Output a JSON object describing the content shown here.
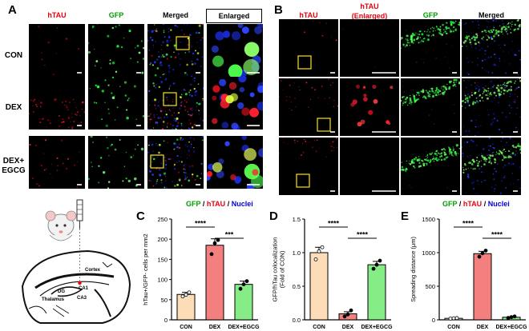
{
  "figure": {
    "panel_labels": {
      "a": "A",
      "b": "B",
      "c": "C",
      "d": "D",
      "e": "E"
    },
    "panel_a": {
      "columns": [
        "hTAU",
        "GFP",
        "Merged",
        "Enlarged"
      ],
      "rows": [
        "CON",
        "DEX",
        "DEX+\nEGCG"
      ]
    },
    "panel_b": {
      "columns": [
        "hTAU",
        "hTAU\n(Enlarged)",
        "GFP",
        "Merged"
      ]
    },
    "stain_legend": {
      "gfp": "GFP",
      "sep1": " / ",
      "htau": "hTAU",
      "sep2": " / ",
      "nuclei": "Nuclei"
    },
    "diagram_labels": {
      "cortex": "Cortex",
      "ca1": "CA1",
      "dg": "DG",
      "ca3": "CA3",
      "thalamus": "Thalamus"
    },
    "colors": {
      "con": "#fddcb8",
      "dex": "#f47f7f",
      "dex_egcg": "#86ec86",
      "htau": "#e8000d",
      "gfp": "#00a000",
      "nuclei": "#0000dd"
    }
  },
  "chart_data": [
    {
      "id": "C",
      "type": "bar",
      "categories": [
        "CON",
        "DEX",
        "DEX+EGCG"
      ],
      "values": [
        63,
        185,
        88
      ],
      "errors": [
        5,
        16,
        8
      ],
      "points": [
        [
          58,
          62,
          68
        ],
        [
          163,
          190,
          198
        ],
        [
          77,
          88,
          96
        ]
      ],
      "ylabel": "hTau+/GFP- cells per mm2",
      "ylim": [
        0,
        250
      ],
      "yticks": [
        0,
        50,
        100,
        150,
        200,
        250
      ],
      "significance": [
        {
          "from": 0,
          "to": 1,
          "label": "****"
        },
        {
          "from": 1,
          "to": 2,
          "label": "***"
        }
      ]
    },
    {
      "id": "D",
      "type": "bar",
      "categories": [
        "CON",
        "DEX",
        "DEX+EGCG"
      ],
      "values": [
        1.0,
        0.09,
        0.82
      ],
      "errors": [
        0.08,
        0.03,
        0.05
      ],
      "points": [
        [
          0.9,
          1.02,
          1.08
        ],
        [
          0.05,
          0.08,
          0.14
        ],
        [
          0.76,
          0.82,
          0.88
        ]
      ],
      "ylabel": "GFP/hTau colocalization\n(Fold of CON)",
      "ylim": [
        0,
        1.5
      ],
      "yticks": [
        0.0,
        0.5,
        1.0,
        1.5
      ],
      "significance": [
        {
          "from": 0,
          "to": 1,
          "label": "****"
        },
        {
          "from": 1,
          "to": 2,
          "label": "****"
        }
      ]
    },
    {
      "id": "E",
      "type": "bar",
      "categories": [
        "CON",
        "DEX",
        "DEX+EGCG"
      ],
      "values": [
        22,
        985,
        38
      ],
      "errors": [
        3,
        35,
        8
      ],
      "points": [
        [
          18,
          22,
          26
        ],
        [
          940,
          990,
          1030
        ],
        [
          28,
          40,
          50
        ]
      ],
      "ylabel": "Spreading distance (μm)",
      "ylim": [
        0,
        1500
      ],
      "yticks": [
        0,
        500,
        1000,
        1500
      ],
      "significance": [
        {
          "from": 0,
          "to": 1,
          "label": "****"
        },
        {
          "from": 1,
          "to": 2,
          "label": "****"
        }
      ]
    }
  ]
}
